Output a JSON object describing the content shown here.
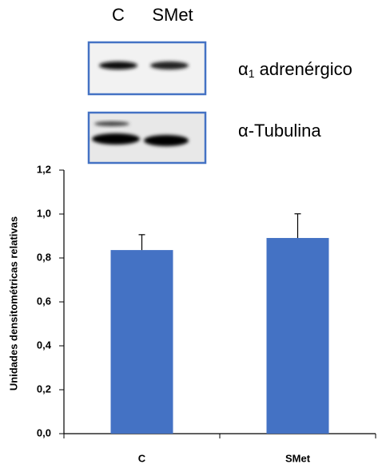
{
  "blot": {
    "lanes": [
      "C",
      "SMet"
    ],
    "bands": [
      {
        "label": [
          "α",
          "1",
          " adrenérgico"
        ]
      },
      {
        "label": [
          "α-Tubulina"
        ]
      }
    ]
  },
  "chart_data": {
    "type": "bar",
    "y_label": "Unidades densitométricas relativas",
    "categories": [
      "C",
      "SMet"
    ],
    "values": [
      0.836,
      0.891
    ],
    "errors": [
      0.07,
      0.11
    ],
    "color": "#4472c4",
    "ylim": [
      0,
      1.2
    ],
    "yticks": [
      {
        "value": 0,
        "label": "0,0"
      },
      {
        "value": 0.2,
        "label": "0,2"
      },
      {
        "value": 0.4,
        "label": "0,4"
      },
      {
        "value": 0.6,
        "label": "0,6"
      },
      {
        "value": 0.8,
        "label": "0,8"
      },
      {
        "value": 1.0,
        "label": "1,0"
      },
      {
        "value": 1.2,
        "label": "1,2"
      }
    ],
    "grid": false
  }
}
